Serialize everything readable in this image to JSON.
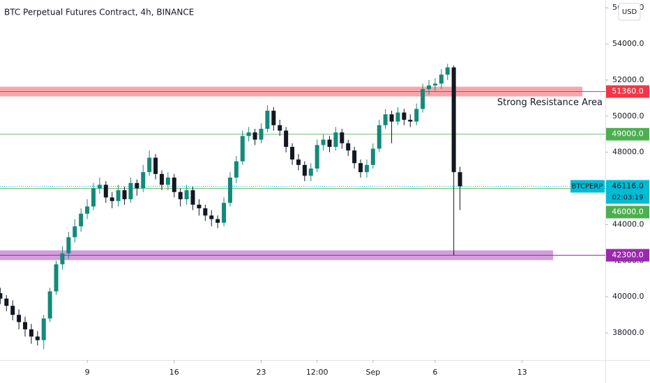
{
  "chart_data": {
    "type": "candlestick",
    "title": "BTC Perpetual Futures Contract, 4h, BINANCE",
    "currency": "USD",
    "x": [
      2,
      2.5,
      3,
      3.5,
      4,
      4.5,
      5,
      5.5,
      6,
      6.5,
      7,
      7.5,
      8,
      8.5,
      9,
      9.5,
      10,
      10.5,
      11,
      11.5,
      12,
      12.5,
      13,
      13.5,
      14,
      14.5,
      15,
      15.5,
      16,
      16.5,
      17,
      17.5,
      18,
      18.5,
      19,
      19.5,
      20,
      20.5,
      21,
      21.5,
      22,
      22.5,
      23,
      23.5,
      24,
      24.5,
      25,
      25.5,
      26,
      26.5,
      27,
      27.5,
      28,
      28.5,
      29,
      29.5,
      30,
      30.5,
      31,
      31.5,
      32,
      32.5,
      33,
      33.5,
      34,
      34.5,
      35,
      35.5,
      36,
      36.5,
      37,
      37.5,
      38,
      38.5,
      39
    ],
    "open": [
      40200,
      39900,
      39500,
      39000,
      38600,
      38200,
      37800,
      37600,
      38800,
      40300,
      41800,
      42400,
      43300,
      43900,
      44600,
      45000,
      46000,
      46200,
      45500,
      45300,
      45900,
      45400,
      46300,
      46000,
      46900,
      47700,
      46800,
      46200,
      46600,
      45800,
      45400,
      45900,
      45100,
      44900,
      44500,
      44300,
      44100,
      45200,
      46600,
      47500,
      48900,
      49100,
      48700,
      49300,
      50300,
      49500,
      49200,
      48300,
      47600,
      47300,
      46700,
      47100,
      48400,
      48700,
      48300,
      49100,
      48500,
      48100,
      47400,
      46900,
      47300,
      48200,
      49500,
      50100,
      49700,
      50200,
      49800,
      49700,
      50400,
      51500,
      51700,
      51800,
      52300,
      52700,
      46900
    ],
    "high": [
      40500,
      40100,
      39800,
      39300,
      38900,
      38500,
      38100,
      39000,
      40500,
      42000,
      42800,
      43600,
      44300,
      44900,
      45400,
      46300,
      46600,
      46400,
      45800,
      46200,
      46100,
      46600,
      46500,
      47300,
      48100,
      47900,
      47000,
      46900,
      46800,
      46000,
      46200,
      46100,
      45400,
      45100,
      44800,
      44500,
      45500,
      46900,
      47800,
      49200,
      49400,
      49300,
      49600,
      50600,
      50500,
      49800,
      49400,
      48500,
      47900,
      47500,
      47400,
      48700,
      49000,
      48900,
      49400,
      49300,
      48700,
      48300,
      47600,
      47600,
      48500,
      49800,
      50400,
      50300,
      50500,
      50400,
      50100,
      50700,
      51800,
      52000,
      52100,
      52600,
      52900,
      52800,
      47200
    ],
    "low": [
      39600,
      39200,
      38700,
      38200,
      37800,
      37400,
      37300,
      37100,
      38600,
      40100,
      41500,
      42100,
      43000,
      43600,
      44300,
      44800,
      45700,
      45200,
      44900,
      45000,
      45100,
      45200,
      45600,
      45800,
      46700,
      46500,
      45900,
      45900,
      45500,
      45000,
      45100,
      44800,
      44500,
      44200,
      43900,
      43800,
      43900,
      45000,
      46300,
      47300,
      48600,
      48400,
      48500,
      49100,
      49200,
      48900,
      48000,
      47300,
      47000,
      46400,
      46400,
      46900,
      48100,
      48000,
      48100,
      48200,
      47800,
      47100,
      46600,
      46600,
      47100,
      48000,
      49300,
      48500,
      49500,
      49500,
      49400,
      49500,
      50200,
      51200,
      51400,
      51500,
      52000,
      42300,
      44800
    ],
    "close": [
      39900,
      39500,
      39000,
      38600,
      38200,
      37800,
      37600,
      38800,
      40300,
      41800,
      42400,
      43300,
      43900,
      44600,
      45000,
      46000,
      46200,
      45500,
      45300,
      45900,
      45400,
      46300,
      46000,
      46900,
      47700,
      46800,
      46200,
      46600,
      45800,
      45400,
      45900,
      45100,
      44900,
      44500,
      44300,
      44100,
      45200,
      46600,
      47500,
      48900,
      49100,
      48700,
      49300,
      50300,
      49500,
      49200,
      48300,
      47600,
      47300,
      46700,
      47100,
      48400,
      48700,
      48300,
      49100,
      48500,
      48100,
      47400,
      46900,
      47300,
      48200,
      49500,
      50100,
      49700,
      50200,
      49800,
      49700,
      50400,
      51500,
      51700,
      51800,
      52300,
      52700,
      46900,
      46116
    ],
    "up_color": "#138a7a",
    "down_color": "#131722",
    "xlim": [
      1.98,
      50.7
    ],
    "xticks": [
      9,
      16,
      23,
      {
        "value": 27.5,
        "label": "12:00"
      },
      {
        "value": 32,
        "label": "Sep"
      },
      {
        "value": 37,
        "label": "6"
      },
      {
        "value": 44,
        "label": "13"
      }
    ],
    "ylim": [
      36500,
      56430
    ],
    "yticks": [
      {
        "value": 38000,
        "label": "38000.0"
      },
      {
        "value": 40000,
        "label": "40000.0"
      },
      {
        "value": 42000,
        "label": "42000.0"
      },
      {
        "value": 44000,
        "label": "44000.0"
      },
      {
        "value": 46000,
        "label": "46000.0"
      },
      {
        "value": 48000,
        "label": "48000.0"
      },
      {
        "value": 50000,
        "label": "50000.0"
      },
      {
        "value": 52000,
        "label": "52000.0"
      },
      {
        "value": 54000,
        "label": "54000.0"
      },
      {
        "value": 56000,
        "label": "56000.0"
      }
    ],
    "levels": [
      {
        "value": 51360,
        "label": "51360.0",
        "color": "#f23645",
        "band": true
      },
      {
        "value": 49000,
        "label": "49000.0",
        "color": "#4caf50",
        "band": false
      },
      {
        "value": 46000,
        "label": "46000.0",
        "color": "#4caf50",
        "band": false
      },
      {
        "value": 42300,
        "label": "42300.0",
        "color": "#9c27b0",
        "band": true
      }
    ],
    "annotation": "Strong Resistance Area",
    "current": {
      "symbol": "BTCPERP",
      "value": 46116,
      "label": "46116.0",
      "countdown": "02:03:19",
      "color": "#00bcd4"
    }
  }
}
